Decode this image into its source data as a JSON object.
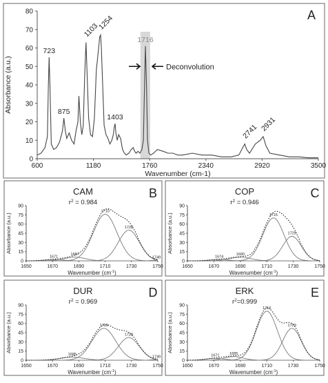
{
  "chart_data": [
    {
      "panel_letter": "A",
      "type": "line",
      "xlabel": "Wavenumber (cm-1)",
      "ylabel": "Absorbance (a.u.)",
      "xlim": [
        600,
        3500
      ],
      "ylim": [
        0,
        80
      ],
      "xticks": [
        600,
        1180,
        1760,
        2340,
        2920,
        3500
      ],
      "yticks": [
        0,
        10,
        20,
        30,
        40,
        50,
        60,
        70,
        80
      ],
      "grid": false,
      "highlight_band": [
        1665,
        1765
      ],
      "annotation": "Deconvolution",
      "peak_labels": [
        {
          "label": "723",
          "x": 723,
          "y": 55
        },
        {
          "label": "875",
          "x": 875,
          "y": 22
        },
        {
          "label": "1103",
          "x": 1103,
          "y": 63
        },
        {
          "label": "1254",
          "x": 1254,
          "y": 67
        },
        {
          "label": "1403",
          "x": 1403,
          "y": 19
        },
        {
          "label": "1716",
          "x": 1716,
          "y": 61
        },
        {
          "label": "2741",
          "x": 2741,
          "y": 8
        },
        {
          "label": "2931",
          "x": 2931,
          "y": 12
        }
      ],
      "series": [
        {
          "x": [
            600,
            640,
            680,
            705,
            715,
            723,
            732,
            745,
            770,
            800,
            830,
            860,
            875,
            890,
            905,
            930,
            955,
            980,
            1000,
            1020,
            1030,
            1045,
            1060,
            1075,
            1090,
            1103,
            1115,
            1130,
            1150,
            1170,
            1190,
            1210,
            1230,
            1245,
            1254,
            1262,
            1275,
            1290,
            1310,
            1330,
            1350,
            1370,
            1385,
            1395,
            1403,
            1412,
            1425,
            1440,
            1460,
            1480,
            1500,
            1520,
            1545,
            1570,
            1590,
            1605,
            1620,
            1640,
            1660,
            1680,
            1695,
            1705,
            1716,
            1727,
            1738,
            1752,
            1770,
            1800,
            1840,
            1900,
            1950,
            2000,
            2050,
            2100,
            2200,
            2300,
            2400,
            2500,
            2600,
            2680,
            2720,
            2741,
            2760,
            2790,
            2850,
            2900,
            2931,
            2960,
            3000,
            3100,
            3200,
            3300,
            3400,
            3500
          ],
          "y": [
            2,
            3,
            6,
            12,
            40,
            55,
            38,
            8,
            5,
            6,
            9,
            15,
            22,
            15,
            11,
            14,
            10,
            8,
            15,
            20,
            34,
            20,
            13,
            18,
            45,
            63,
            45,
            22,
            13,
            12,
            22,
            48,
            58,
            66,
            67,
            60,
            40,
            18,
            13,
            11,
            8,
            10,
            13,
            17,
            19,
            14,
            10,
            13,
            11,
            5,
            3,
            2,
            3,
            5,
            6,
            4,
            3,
            4,
            3,
            5,
            10,
            35,
            61,
            40,
            10,
            3,
            2,
            3,
            5,
            4,
            3,
            3,
            2,
            2,
            3,
            2,
            2,
            1,
            1,
            2,
            6,
            8,
            5,
            3,
            8,
            10,
            12,
            7,
            3,
            2,
            1,
            1,
            0.5,
            0.5
          ]
        }
      ]
    },
    {
      "panel_letter": "B",
      "type": "line",
      "title": "CAM",
      "r2_prefix": "r",
      "r2_exp": "2",
      "r2_suffix": " = 0.984",
      "xlabel_main": "Wavenumber (cm",
      "xlabel_exp": "-1",
      "xlabel_end": ")",
      "ylabel": "Absorbance (a.u.)",
      "xlim": [
        1650,
        1750
      ],
      "ylim": [
        0,
        90
      ],
      "xticks": [
        1650,
        1670,
        1690,
        1710,
        1730,
        1750
      ],
      "yticks": [
        0,
        15,
        30,
        45,
        60,
        75,
        90
      ],
      "components": [
        {
          "center": 1671,
          "amplitude": 2,
          "width": 7
        },
        {
          "center": 1687,
          "amplitude": 6,
          "width": 8
        },
        {
          "center": 1710,
          "amplitude": 76,
          "width": 9
        },
        {
          "center": 1728,
          "amplitude": 50,
          "width": 8
        },
        {
          "center": 1749,
          "amplitude": 1,
          "width": 4
        }
      ],
      "peak_labels": [
        "1671",
        "1687",
        "1710",
        "1728",
        "1749"
      ]
    },
    {
      "panel_letter": "C",
      "type": "line",
      "title": "COP",
      "r2_prefix": "r",
      "r2_exp": "2",
      "r2_suffix": " = 0.946",
      "xlabel_main": "Wavenumber (cm",
      "xlabel_exp": "-1",
      "xlabel_end": ")",
      "ylabel": "Absorbance (a.u.)",
      "xlim": [
        1650,
        1750
      ],
      "ylim": [
        0,
        90
      ],
      "xticks": [
        1650,
        1670,
        1690,
        1710,
        1730,
        1750
      ],
      "yticks": [
        0,
        15,
        30,
        45,
        60,
        75,
        90
      ],
      "components": [
        {
          "center": 1674,
          "amplitude": 2,
          "width": 7
        },
        {
          "center": 1690,
          "amplitude": 6,
          "width": 8
        },
        {
          "center": 1715,
          "amplitude": 70,
          "width": 8
        },
        {
          "center": 1729,
          "amplitude": 40,
          "width": 7
        }
      ],
      "peak_labels": [
        "1674",
        "1690",
        "1715",
        "1729"
      ]
    },
    {
      "panel_letter": "D",
      "type": "line",
      "title": "DUR",
      "r2_prefix": "r",
      "r2_exp": "2",
      "r2_suffix": " = 0.969",
      "xlabel_main": "Wavenumber (cm",
      "xlabel_exp": "-1",
      "xlabel_end": ")",
      "ylabel": "Absorbance (a.u.)",
      "xlim": [
        1650,
        1750
      ],
      "ylim": [
        0,
        90
      ],
      "xticks": [
        1650,
        1670,
        1690,
        1710,
        1730,
        1750
      ],
      "yticks": [
        0,
        15,
        30,
        45,
        60,
        75,
        90
      ],
      "components": [
        {
          "center": 1685,
          "amplitude": 5,
          "width": 9
        },
        {
          "center": 1709,
          "amplitude": 52,
          "width": 9
        },
        {
          "center": 1728,
          "amplitude": 37,
          "width": 8
        },
        {
          "center": 1749,
          "amplitude": 1,
          "width": 4
        }
      ],
      "peak_labels": [
        "1685",
        "1709",
        "1728",
        "1749"
      ]
    },
    {
      "panel_letter": "E",
      "type": "line",
      "title": "ERK",
      "r2_prefix": "r",
      "r2_exp": "2",
      "r2_suffix": "=0.999",
      "xlabel_main": "Wavenumber (cm",
      "xlabel_exp": "-1",
      "xlabel_end": ")",
      "ylabel": "Absorbance (a.u.)",
      "xlim": [
        1650,
        1750
      ],
      "ylim": [
        0,
        90
      ],
      "xticks": [
        1650,
        1670,
        1690,
        1710,
        1730,
        1750
      ],
      "yticks": [
        0,
        15,
        30,
        45,
        60,
        75,
        90
      ],
      "components": [
        {
          "center": 1671,
          "amplitude": 3,
          "width": 7
        },
        {
          "center": 1685,
          "amplitude": 6,
          "width": 7
        },
        {
          "center": 1710,
          "amplitude": 80,
          "width": 8
        },
        {
          "center": 1729,
          "amplitude": 52,
          "width": 7
        }
      ],
      "peak_labels": [
        "1671",
        "1685",
        "1710",
        "1729"
      ]
    }
  ]
}
